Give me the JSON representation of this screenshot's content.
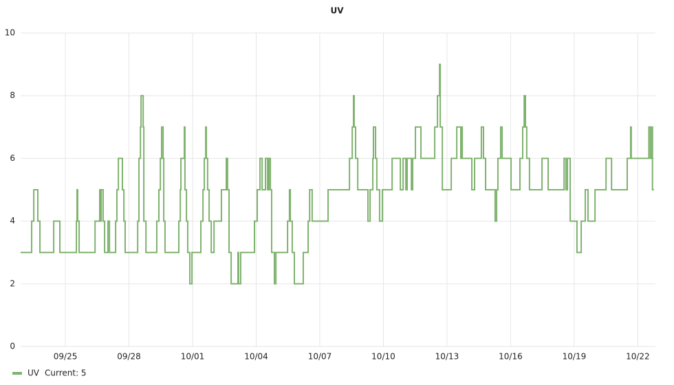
{
  "chart_data": {
    "type": "step",
    "title": "UV",
    "series": [
      {
        "name": "UV",
        "color": "#7eb26d",
        "x": [
          0.89,
          1.41,
          1.51,
          1.7,
          1.8,
          2.45,
          2.74,
          3.52,
          3.55,
          3.58,
          3.65,
          4.4,
          4.62,
          4.65,
          4.69,
          4.78,
          4.85,
          5.01,
          5.08,
          5.37,
          5.43,
          5.5,
          5.69,
          5.76,
          5.82,
          6.41,
          6.47,
          6.54,
          6.57,
          6.67,
          6.7,
          6.8,
          7.31,
          7.41,
          7.48,
          7.54,
          7.61,
          7.64,
          7.7,
          8.35,
          8.42,
          8.45,
          8.61,
          8.64,
          8.71,
          8.77,
          8.87,
          8.97,
          9.39,
          9.49,
          9.55,
          9.62,
          9.65,
          9.71,
          9.78,
          9.88,
          10.01,
          10.36,
          10.59,
          10.65,
          10.72,
          10.82,
          11.14,
          11.17,
          11.27,
          11.92,
          12.05,
          12.18,
          12.28,
          12.44,
          12.54,
          12.6,
          12.67,
          12.73,
          12.86,
          12.93,
          13.48,
          13.57,
          13.61,
          13.7,
          13.8,
          14.22,
          14.45,
          14.52,
          14.64,
          15.39,
          16.4,
          16.53,
          16.59,
          16.62,
          16.69,
          16.79,
          17.27,
          17.37,
          17.5,
          17.53,
          17.63,
          17.69,
          17.82,
          17.95,
          18.41,
          18.8,
          18.93,
          19.06,
          19.12,
          19.32,
          19.38,
          19.51,
          19.77,
          20.42,
          20.55,
          20.65,
          20.68,
          20.78,
          21.2,
          21.46,
          21.65,
          21.68,
          21.72,
          22.17,
          22.3,
          22.62,
          22.72,
          22.82,
          23.27,
          23.34,
          23.4,
          23.53,
          23.6,
          24.02,
          24.44,
          24.57,
          24.64,
          24.7,
          24.76,
          24.89,
          25.48,
          25.77,
          26.52,
          26.61,
          26.68,
          26.81,
          27.13,
          27.33,
          27.52,
          27.65,
          27.98,
          28.5,
          28.76,
          29.5,
          29.66,
          29.69,
          30.52,
          30.59,
          30.66,
          30.69,
          30.76
        ],
        "values": [
          3,
          4,
          5,
          4,
          3,
          4,
          3,
          4,
          5,
          4,
          3,
          4,
          5,
          4,
          5,
          4,
          3,
          4,
          3,
          4,
          5,
          6,
          5,
          4,
          3,
          4,
          6,
          7,
          8,
          7,
          4,
          3,
          4,
          5,
          6,
          7,
          6,
          4,
          3,
          4,
          5,
          6,
          7,
          5,
          4,
          3,
          2,
          3,
          4,
          5,
          6,
          7,
          6,
          5,
          4,
          3,
          4,
          5,
          6,
          5,
          3,
          2,
          3,
          2,
          3,
          4,
          5,
          6,
          5,
          6,
          5,
          6,
          5,
          3,
          2,
          3,
          4,
          5,
          4,
          3,
          2,
          3,
          4,
          5,
          4,
          5,
          6,
          7,
          8,
          7,
          6,
          5,
          4,
          5,
          6,
          7,
          6,
          5,
          4,
          5,
          6,
          5,
          6,
          5,
          6,
          5,
          6,
          7,
          6,
          7,
          8,
          9,
          7,
          5,
          6,
          7,
          6,
          7,
          6,
          5,
          6,
          7,
          6,
          5,
          4,
          5,
          6,
          7,
          6,
          5,
          6,
          7,
          8,
          7,
          6,
          5,
          6,
          5,
          6,
          5,
          6,
          4,
          3,
          4,
          5,
          4,
          5,
          6,
          5,
          6,
          7,
          6,
          7,
          6,
          7,
          5,
          5
        ]
      }
    ],
    "legend_current": "Current: 5",
    "xlim": [
      0.89,
      30.83
    ],
    "xticks": [
      {
        "value": 3,
        "label": "09/25"
      },
      {
        "value": 6,
        "label": "09/28"
      },
      {
        "value": 9,
        "label": "10/01"
      },
      {
        "value": 12,
        "label": "10/04"
      },
      {
        "value": 15,
        "label": "10/07"
      },
      {
        "value": 18,
        "label": "10/10"
      },
      {
        "value": 21,
        "label": "10/13"
      },
      {
        "value": 24,
        "label": "10/16"
      },
      {
        "value": 27,
        "label": "10/19"
      },
      {
        "value": 30,
        "label": "10/22"
      }
    ],
    "ylim": [
      0,
      10
    ],
    "yticks": [
      0,
      2,
      4,
      6,
      8,
      10
    ],
    "grid": true
  }
}
